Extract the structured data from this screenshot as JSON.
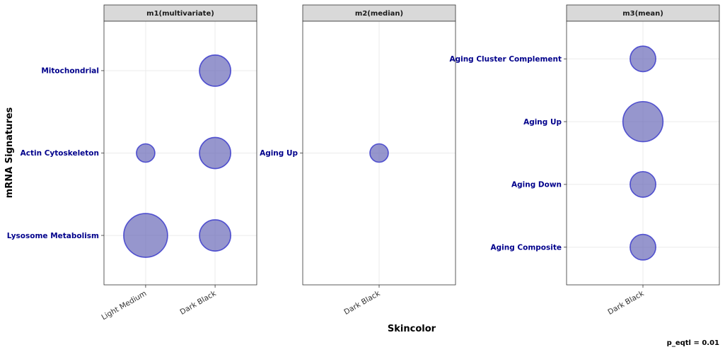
{
  "chart_data": {
    "type": "scatter",
    "xlabel": "Skincolor",
    "ylabel": "mRNA Signatures",
    "caption": "p_eqtl =  0.01",
    "point_color": "#6a6ab8",
    "point_stroke": "#2828c8",
    "label_color": "#00008b",
    "strip_fill": "#d9d9d9",
    "grid": true,
    "panels": [
      {
        "title": "m1(multivariate)",
        "x_categories": [
          "Light Medium",
          "Dark Black"
        ],
        "y_categories": [
          "Lysosome Metabolism",
          "Actin Cytoskeleton",
          "Mitochondrial"
        ],
        "points": [
          {
            "x": "Dark Black",
            "y": "Mitochondrial",
            "size": 3
          },
          {
            "x": "Light Medium",
            "y": "Actin Cytoskeleton",
            "size": 1
          },
          {
            "x": "Dark Black",
            "y": "Actin Cytoskeleton",
            "size": 3
          },
          {
            "x": "Light Medium",
            "y": "Lysosome Metabolism",
            "size": 6
          },
          {
            "x": "Dark Black",
            "y": "Lysosome Metabolism",
            "size": 3
          }
        ]
      },
      {
        "title": "m2(median)",
        "x_categories": [
          "Dark Black"
        ],
        "y_categories": [
          "Aging Up"
        ],
        "points": [
          {
            "x": "Dark Black",
            "y": "Aging Up",
            "size": 1
          }
        ]
      },
      {
        "title": "m3(mean)",
        "x_categories": [
          "Dark Black"
        ],
        "y_categories": [
          "Aging Composite",
          "Aging Down",
          "Aging Up",
          "Aging Cluster Complement"
        ],
        "points": [
          {
            "x": "Dark Black",
            "y": "Aging Cluster Complement",
            "size": 2
          },
          {
            "x": "Dark Black",
            "y": "Aging Up",
            "size": 5
          },
          {
            "x": "Dark Black",
            "y": "Aging Down",
            "size": 2
          },
          {
            "x": "Dark Black",
            "y": "Aging Composite",
            "size": 2
          }
        ]
      }
    ]
  }
}
